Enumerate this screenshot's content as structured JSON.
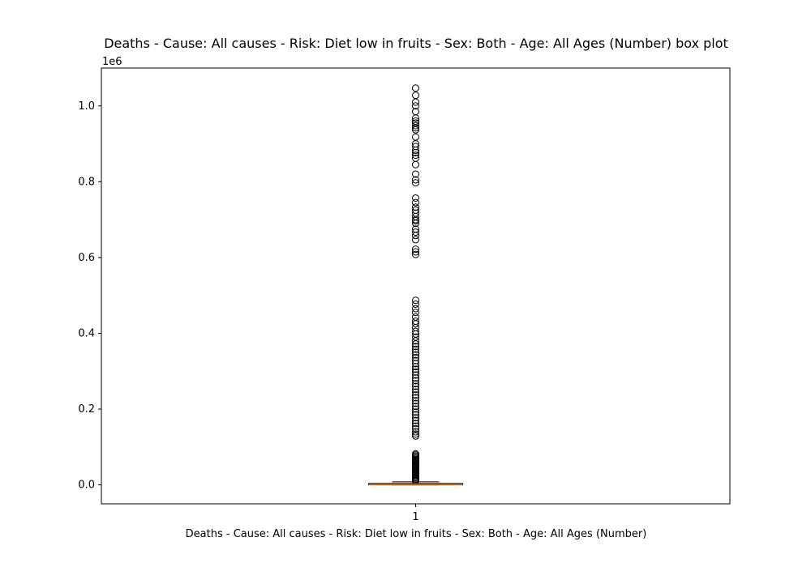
{
  "chart_data": {
    "type": "box",
    "title": "Deaths - Cause: All causes - Risk: Diet low in fruits - Sex: Both - Age: All Ages (Number) box plot",
    "xlabel": "Deaths - Cause: All causes - Risk: Diet low in fruits - Sex: Both - Age: All Ages (Number)",
    "ylabel": "",
    "y_offset_label": "1e6",
    "categories": [
      "1"
    ],
    "ylim": [
      -50000,
      1100000
    ],
    "yticks": [
      0,
      200000,
      400000,
      600000,
      800000,
      1000000
    ],
    "ytick_labels": [
      "0.0",
      "0.2",
      "0.4",
      "0.6",
      "0.8",
      "1.0"
    ],
    "grid": false,
    "box": {
      "whisker_low": 0,
      "q1": 0,
      "median": 1500,
      "q3": 4000,
      "whisker_high": 8000
    },
    "outliers": [
      1047000,
      1028000,
      1010000,
      1000000,
      985000,
      968000,
      960000,
      955000,
      948000,
      942000,
      937000,
      918000,
      900000,
      893000,
      883000,
      877000,
      870000,
      862000,
      845000,
      820000,
      805000,
      797000,
      757000,
      745000,
      733000,
      725000,
      717000,
      708000,
      700000,
      697000,
      690000,
      675000,
      667000,
      658000,
      647000,
      622000,
      615000,
      608000,
      487000,
      477000,
      465000,
      455000,
      443000,
      432000,
      425000,
      415000,
      405000,
      398000,
      390000,
      380000,
      372000,
      365000,
      358000,
      350000,
      343000,
      336000,
      328000,
      320000,
      312000,
      305000,
      298000,
      290000,
      282000,
      275000,
      267000,
      260000,
      252000,
      245000,
      237000,
      230000,
      222000,
      215000,
      207000,
      200000,
      192000,
      185000,
      177000,
      170000,
      162000,
      155000,
      148000,
      140000,
      134000,
      129000,
      82000,
      79000,
      76000,
      73000,
      70000,
      67000,
      64000,
      61000,
      58000,
      55000,
      52000,
      49000,
      46000,
      43000,
      40000,
      37000,
      34000,
      31000,
      28000,
      25000,
      22000,
      19000,
      16000,
      13000,
      10000
    ],
    "colors": {
      "box": "#000000",
      "median": "#ff7f0e",
      "flier": "#000000"
    }
  }
}
